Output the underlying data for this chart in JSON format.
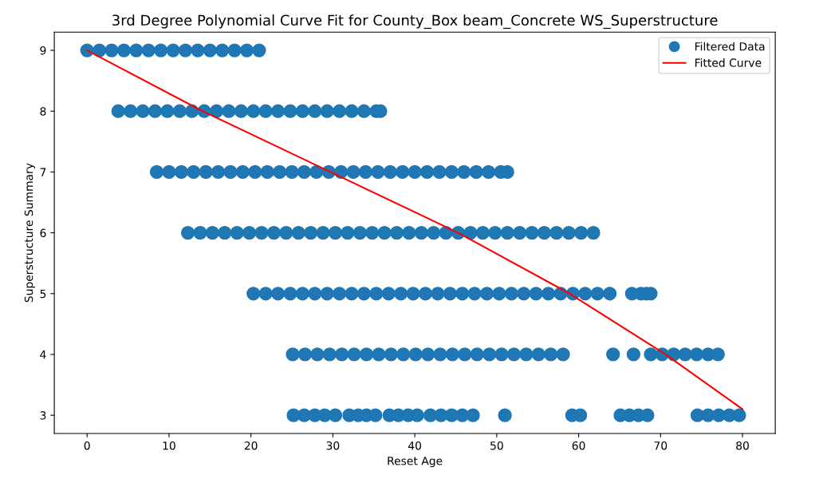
{
  "chart_data": {
    "type": "scatter",
    "title": "3rd Degree Polynomial Curve Fit for County_Box beam_Concrete WS_Superstructure",
    "xlabel": "Reset Age",
    "ylabel": "Superstructure Summary",
    "xlim": [
      -4,
      84
    ],
    "ylim": [
      2.7,
      9.3
    ],
    "xticks": [
      0,
      10,
      20,
      30,
      40,
      50,
      60,
      70,
      80
    ],
    "yticks": [
      3,
      4,
      5,
      6,
      7,
      8,
      9
    ],
    "grid": false,
    "legend": "top right",
    "series": [
      {
        "name": "Filtered Data",
        "marker": "circle",
        "color": "#1f77b4",
        "x": [
          0,
          1.5,
          3,
          4.5,
          6,
          7.5,
          9,
          10.5,
          12,
          13.5,
          15,
          16.5,
          18,
          19.5,
          21,
          3.8,
          5.3,
          6.8,
          8.3,
          9.8,
          11.3,
          12.8,
          14.3,
          15.8,
          17.3,
          18.8,
          20.3,
          21.8,
          23.3,
          24.8,
          26.3,
          27.8,
          29.3,
          30.8,
          32.3,
          33.8,
          35.3,
          35.8,
          8.5,
          10,
          11.5,
          13,
          14.5,
          16,
          17.5,
          19,
          20.5,
          22,
          23.5,
          25,
          26.5,
          28,
          29.5,
          31,
          32.5,
          34,
          35.5,
          37,
          38.5,
          40,
          41.5,
          43,
          44.5,
          46,
          47.5,
          49,
          50.5,
          51.3,
          12.3,
          13.8,
          15.3,
          16.8,
          18.3,
          19.8,
          21.3,
          22.8,
          24.3,
          25.8,
          27.3,
          28.8,
          30.3,
          31.8,
          33.3,
          34.8,
          36.3,
          37.8,
          39.3,
          40.8,
          42.3,
          43.8,
          45.3,
          46.8,
          48.3,
          49.8,
          51.3,
          52.8,
          54.3,
          55.8,
          57.3,
          58.8,
          60.3,
          61.8,
          20.3,
          21.8,
          23.3,
          24.8,
          26.3,
          27.8,
          29.3,
          30.8,
          32.3,
          33.8,
          35.3,
          36.8,
          38.3,
          39.8,
          41.3,
          42.8,
          44.3,
          45.8,
          47.3,
          48.8,
          50.3,
          51.8,
          53.3,
          54.8,
          56.3,
          57.8,
          59.3,
          60.8,
          62.3,
          63.8,
          66.5,
          67.6,
          68.3,
          68.8,
          25.1,
          26.6,
          28.1,
          29.6,
          31.1,
          32.6,
          34.1,
          35.6,
          37.1,
          38.6,
          40.1,
          41.6,
          43.1,
          44.6,
          46.1,
          47.6,
          49.1,
          50.6,
          52.1,
          53.6,
          55.1,
          56.6,
          58.1,
          64.2,
          66.7,
          68.8,
          70.2,
          71.6,
          73,
          74.4,
          75.8,
          77,
          25.2,
          26.5,
          27.8,
          29,
          30.3,
          32,
          33.1,
          34.1,
          35.2,
          36.9,
          38,
          39.2,
          40.3,
          41.9,
          43.2,
          44.5,
          45.8,
          47.1,
          51,
          59.2,
          60.2,
          65.1,
          66.2,
          67.3,
          68.4,
          74.5,
          75.8,
          77.1,
          78.4,
          79.6
        ],
        "values": [
          9,
          9,
          9,
          9,
          9,
          9,
          9,
          9,
          9,
          9,
          9,
          9,
          9,
          9,
          9,
          8,
          8,
          8,
          8,
          8,
          8,
          8,
          8,
          8,
          8,
          8,
          8,
          8,
          8,
          8,
          8,
          8,
          8,
          8,
          8,
          8,
          8,
          8,
          7,
          7,
          7,
          7,
          7,
          7,
          7,
          7,
          7,
          7,
          7,
          7,
          7,
          7,
          7,
          7,
          7,
          7,
          7,
          7,
          7,
          7,
          7,
          7,
          7,
          7,
          7,
          7,
          7,
          7,
          6,
          6,
          6,
          6,
          6,
          6,
          6,
          6,
          6,
          6,
          6,
          6,
          6,
          6,
          6,
          6,
          6,
          6,
          6,
          6,
          6,
          6,
          6,
          6,
          6,
          6,
          6,
          6,
          6,
          6,
          6,
          6,
          6,
          6,
          5,
          5,
          5,
          5,
          5,
          5,
          5,
          5,
          5,
          5,
          5,
          5,
          5,
          5,
          5,
          5,
          5,
          5,
          5,
          5,
          5,
          5,
          5,
          5,
          5,
          5,
          5,
          5,
          5,
          5,
          5,
          5,
          5,
          5,
          4,
          4,
          4,
          4,
          4,
          4,
          4,
          4,
          4,
          4,
          4,
          4,
          4,
          4,
          4,
          4,
          4,
          4,
          4,
          4,
          4,
          4,
          4,
          4,
          4,
          4,
          4,
          4,
          4,
          4,
          4,
          4,
          3,
          3,
          3,
          3,
          3,
          3,
          3,
          3,
          3,
          3,
          3,
          3,
          3,
          3,
          3,
          3,
          3,
          3,
          3,
          3,
          3,
          3,
          3,
          3,
          3,
          3,
          3,
          3,
          3,
          3
        ]
      },
      {
        "name": "Fitted Curve",
        "type": "line",
        "color": "#ff0000",
        "x": [
          0,
          14.1,
          29.7,
          45.3,
          58.9,
          70.6,
          80
        ],
        "values": [
          9.0,
          8.0,
          7.0,
          6.0,
          5.0,
          4.0,
          3.1
        ]
      }
    ]
  }
}
